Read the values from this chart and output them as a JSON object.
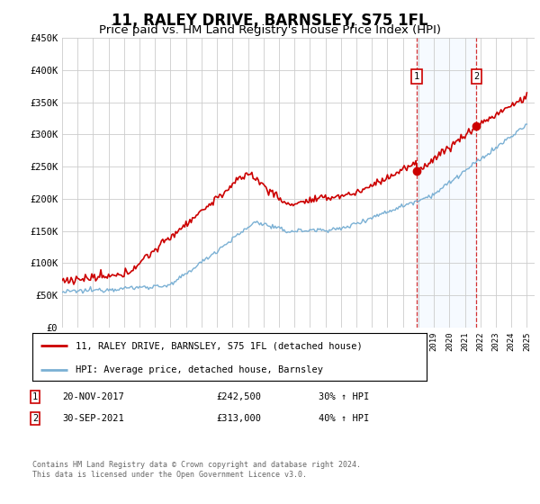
{
  "title": "11, RALEY DRIVE, BARNSLEY, S75 1FL",
  "subtitle": "Price paid vs. HM Land Registry's House Price Index (HPI)",
  "ylim": [
    0,
    450000
  ],
  "yticks": [
    0,
    50000,
    100000,
    150000,
    200000,
    250000,
    300000,
    350000,
    400000,
    450000
  ],
  "ytick_labels": [
    "£0",
    "£50K",
    "£100K",
    "£150K",
    "£200K",
    "£250K",
    "£300K",
    "£350K",
    "£400K",
    "£450K"
  ],
  "xlim_start": 1995.0,
  "xlim_end": 2025.5,
  "red_line_color": "#cc0000",
  "blue_line_color": "#7ab0d4",
  "shade_color": "#ddeeff",
  "marker1_x": 2017.9,
  "marker1_y": 242500,
  "marker2_x": 2021.75,
  "marker2_y": 313000,
  "annotation1": [
    "1",
    "20-NOV-2017",
    "£242,500",
    "30% ↑ HPI"
  ],
  "annotation2": [
    "2",
    "30-SEP-2021",
    "£313,000",
    "40% ↑ HPI"
  ],
  "legend_line1": "11, RALEY DRIVE, BARNSLEY, S75 1FL (detached house)",
  "legend_line2": "HPI: Average price, detached house, Barnsley",
  "footer": "Contains HM Land Registry data © Crown copyright and database right 2024.\nThis data is licensed under the Open Government Licence v3.0.",
  "title_fontsize": 12,
  "subtitle_fontsize": 9.5,
  "background_color": "#ffffff",
  "grid_color": "#cccccc"
}
